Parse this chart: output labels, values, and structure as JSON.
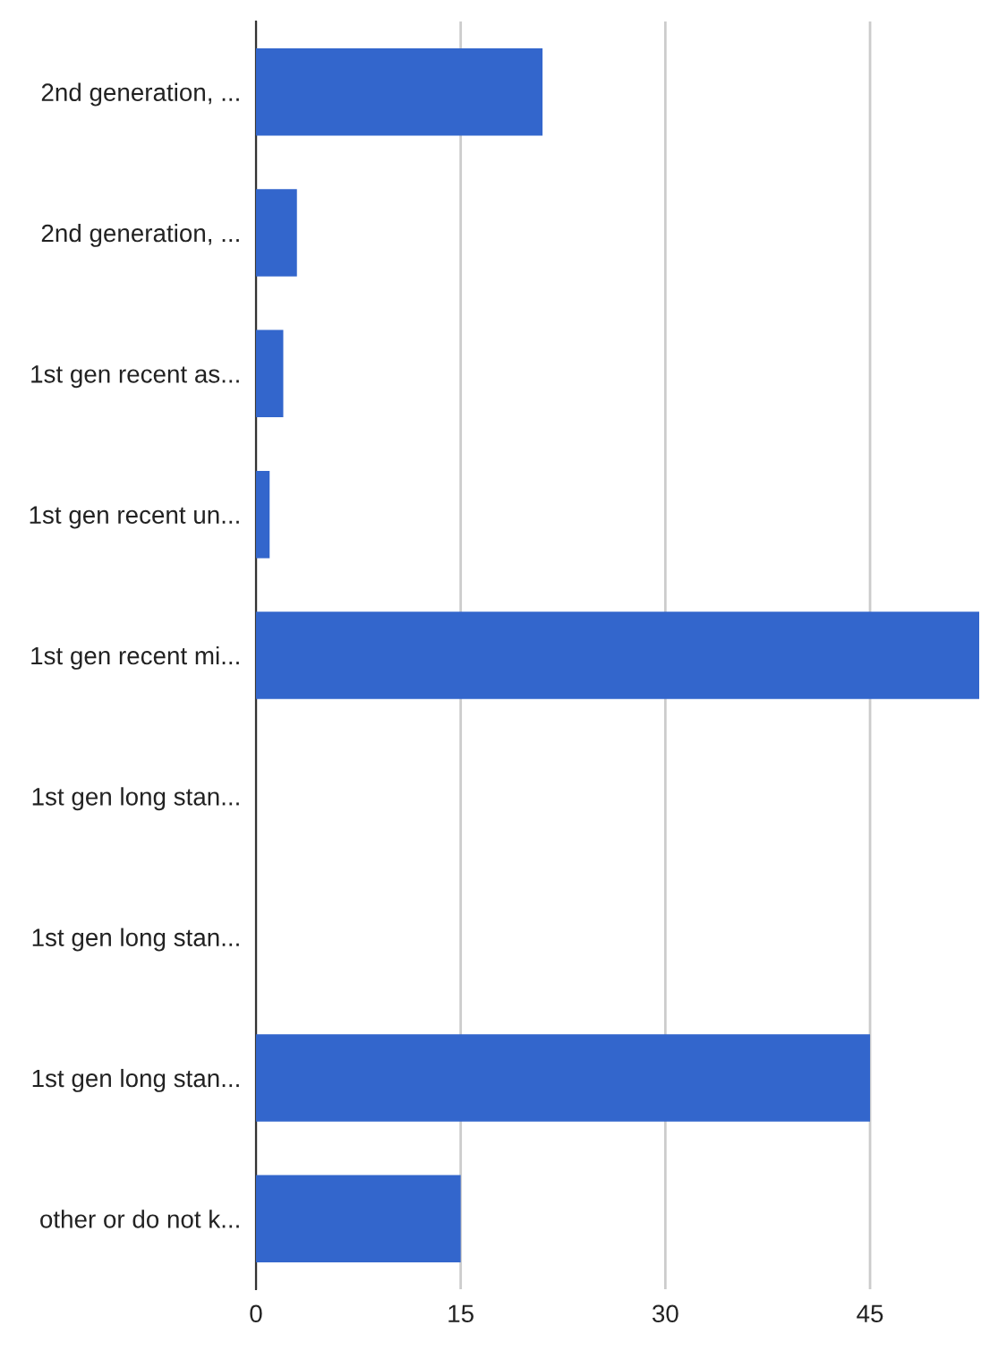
{
  "chart_data": {
    "type": "bar",
    "orientation": "horizontal",
    "categories": [
      "2nd generation, ...",
      "2nd generation, ...",
      "1st gen recent as...",
      "1st gen recent un...",
      "1st gen recent mi...",
      "1st gen long stan...",
      "1st gen long stan...",
      "1st gen long stan...",
      "other or do not k..."
    ],
    "values": [
      21,
      3,
      2,
      1,
      53,
      0,
      0,
      45,
      15
    ],
    "color": "#3366cc",
    "xlim": [
      0,
      53
    ],
    "xticks": [
      0,
      15,
      30,
      45
    ],
    "grid": "x",
    "legend": false
  }
}
